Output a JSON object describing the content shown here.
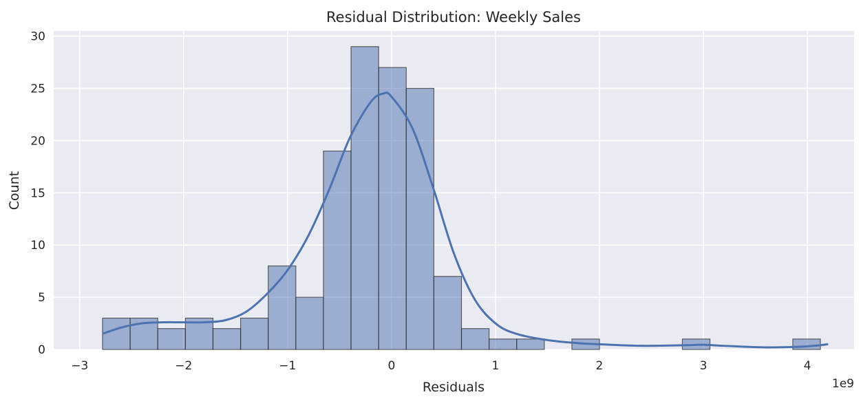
{
  "chart_data": {
    "type": "bar",
    "title": "Residual Distribution: Weekly Sales",
    "xlabel": "Residuals",
    "ylabel": "Count",
    "x_offset_label": "1e9",
    "xlim": [
      -3.25,
      4.45
    ],
    "ylim": [
      0,
      30.5
    ],
    "xticks": [
      -3,
      -2,
      -1,
      0,
      1,
      2,
      3,
      4
    ],
    "xtick_labels": [
      "−3",
      "−2",
      "−1",
      "0",
      "1",
      "2",
      "3",
      "4"
    ],
    "yticks": [
      0,
      5,
      10,
      15,
      20,
      25,
      30
    ],
    "ytick_labels": [
      "0",
      "5",
      "10",
      "15",
      "20",
      "25",
      "30"
    ],
    "grid": true,
    "bin_start": -2.78,
    "bin_width": 0.2656,
    "counts": [
      3,
      3,
      2,
      3,
      2,
      3,
      8,
      5,
      19,
      29,
      27,
      25,
      7,
      2,
      1,
      1,
      0,
      1,
      0,
      0,
      0,
      1,
      0,
      0,
      0,
      1
    ],
    "bar_color": "#4c72b0",
    "kde_color": "#4c72b0",
    "kde_curve": {
      "x": [
        -2.78,
        -2.6,
        -2.4,
        -2.2,
        -2.0,
        -1.8,
        -1.6,
        -1.4,
        -1.2,
        -1.0,
        -0.8,
        -0.6,
        -0.4,
        -0.2,
        -0.08,
        0.0,
        0.2,
        0.4,
        0.6,
        0.8,
        1.0,
        1.2,
        1.5,
        1.8,
        2.0,
        2.4,
        2.8,
        3.0,
        3.2,
        3.6,
        4.0,
        4.2
      ],
      "y": [
        1.5,
        2.1,
        2.5,
        2.6,
        2.6,
        2.6,
        2.8,
        3.6,
        5.3,
        7.6,
        10.9,
        15.3,
        20.3,
        23.7,
        24.5,
        24.2,
        21.2,
        15.5,
        9.2,
        4.8,
        2.5,
        1.5,
        0.9,
        0.6,
        0.5,
        0.35,
        0.4,
        0.45,
        0.35,
        0.2,
        0.3,
        0.5
      ]
    }
  }
}
